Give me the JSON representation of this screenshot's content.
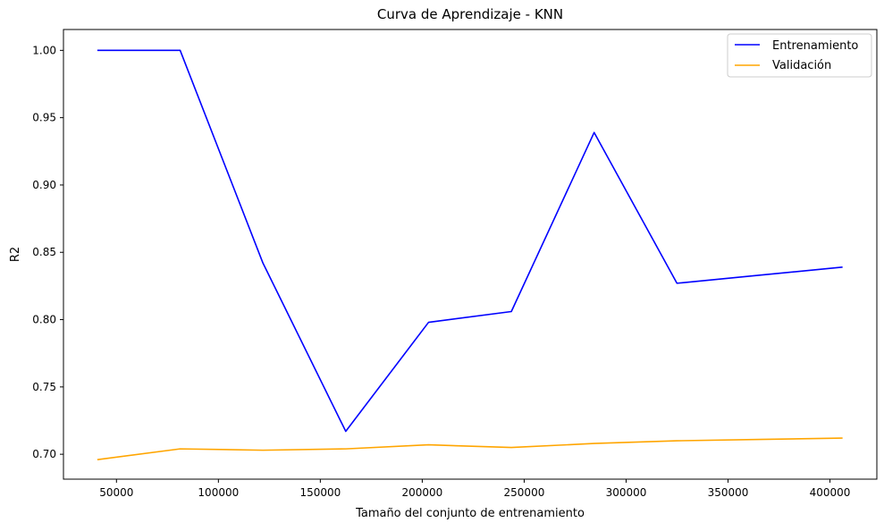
{
  "chart_data": {
    "type": "line",
    "title": "Curva de Aprendizaje - KNN",
    "xlabel": "Tamaño del conjunto de entrenamiento",
    "ylabel": "R2",
    "xlim": [
      24000,
      423000
    ],
    "ylim": [
      0.6815,
      1.0155
    ],
    "x": [
      40618,
      81236,
      121854,
      162472,
      203090,
      243708,
      284326,
      324944,
      365562,
      406180
    ],
    "xticks": [
      50000,
      100000,
      150000,
      200000,
      250000,
      300000,
      350000,
      400000
    ],
    "xtick_labels": [
      "50000",
      "100000",
      "150000",
      "200000",
      "250000",
      "300000",
      "350000",
      "400000"
    ],
    "yticks": [
      0.7,
      0.75,
      0.8,
      0.85,
      0.9,
      0.95,
      1.0
    ],
    "ytick_labels": [
      "0.70",
      "0.75",
      "0.80",
      "0.85",
      "0.90",
      "0.95",
      "1.00"
    ],
    "grid": false,
    "legend_position": "top-right",
    "series": [
      {
        "name": "Entrenamiento",
        "color": "#0000ff",
        "values": [
          1.0,
          1.0,
          0.842,
          0.717,
          0.798,
          0.806,
          0.939,
          0.827,
          0.833,
          0.839
        ]
      },
      {
        "name": "Validación",
        "color": "#ffa500",
        "values": [
          0.696,
          0.704,
          0.703,
          0.704,
          0.707,
          0.705,
          0.708,
          0.71,
          0.711,
          0.712
        ]
      }
    ]
  }
}
